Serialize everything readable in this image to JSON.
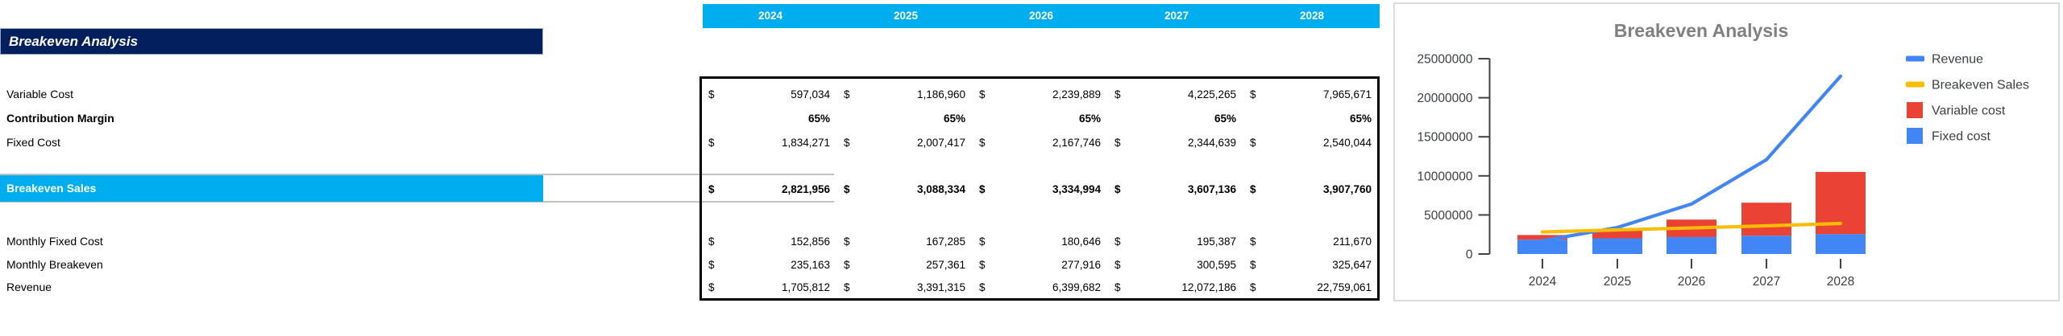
{
  "sheet": {
    "title": "Breakeven Analysis",
    "currency_symbol": "$",
    "columns": [
      "2024",
      "2025",
      "2026",
      "2027",
      "2028"
    ],
    "rows": [
      {
        "key": "variable-cost",
        "label": "Variable Cost",
        "dollar": true,
        "bold": false,
        "highlight": false,
        "values": [
          "597,034",
          "1,186,960",
          "2,239,889",
          "4,225,265",
          "7,965,671"
        ]
      },
      {
        "key": "contribution-margin",
        "label": "Contribution Margin",
        "dollar": false,
        "bold": true,
        "highlight": false,
        "values": [
          "65%",
          "65%",
          "65%",
          "65%",
          "65%"
        ]
      },
      {
        "key": "fixed-cost",
        "label": "Fixed Cost",
        "dollar": true,
        "bold": false,
        "highlight": false,
        "values": [
          "1,834,271",
          "2,007,417",
          "2,167,746",
          "2,344,639",
          "2,540,044"
        ]
      },
      {
        "key": "breakeven-sales",
        "label": "Breakeven Sales",
        "dollar": true,
        "bold": true,
        "highlight": true,
        "values": [
          "2,821,956",
          "3,088,334",
          "3,334,994",
          "3,607,136",
          "3,907,760"
        ]
      },
      {
        "key": "monthly-fixed-cost",
        "label": "Monthly Fixed Cost",
        "dollar": true,
        "bold": false,
        "highlight": false,
        "values": [
          "152,856",
          "167,285",
          "180,646",
          "195,387",
          "211,670"
        ]
      },
      {
        "key": "monthly-breakeven",
        "label": "Monthly Breakeven",
        "dollar": true,
        "bold": false,
        "highlight": false,
        "values": [
          "235,163",
          "257,361",
          "277,916",
          "300,595",
          "325,647"
        ]
      },
      {
        "key": "revenue",
        "label": "Revenue",
        "dollar": true,
        "bold": false,
        "highlight": false,
        "values": [
          "1,705,812",
          "3,391,315",
          "6,399,682",
          "12,072,186",
          "22,759,061"
        ]
      }
    ],
    "colors": {
      "title_bar": "#041F5E",
      "header_bar": "#00AEEF",
      "highlight_bar": "#00AEEF"
    }
  },
  "chart_data": {
    "type": "bar",
    "subtype": "stacked-bars-with-lines",
    "title": "Breakeven Analysis",
    "title_color": "#808080",
    "categories": [
      "2024",
      "2025",
      "2026",
      "2027",
      "2028"
    ],
    "series": [
      {
        "name": "Revenue",
        "type": "line",
        "color": "#4285F4",
        "values": [
          1705812,
          3391315,
          6399682,
          12072186,
          22759061
        ]
      },
      {
        "name": "Breakeven Sales",
        "type": "line",
        "color": "#FBBC04",
        "values": [
          2821956,
          3088334,
          3334994,
          3607136,
          3907760
        ]
      },
      {
        "name": "Variable cost",
        "type": "bar",
        "color": "#EA4335",
        "values": [
          597034,
          1186960,
          2239889,
          4225265,
          7965671
        ]
      },
      {
        "name": "Fixed cost",
        "type": "bar",
        "color": "#4285F4",
        "values": [
          1834271,
          2007417,
          2167746,
          2344639,
          2540044
        ]
      }
    ],
    "stacked": true,
    "xlabel": "",
    "ylabel": "",
    "ylim": [
      0,
      25000000
    ],
    "yticks": [
      0,
      5000000,
      10000000,
      15000000,
      20000000,
      25000000
    ],
    "grid": false,
    "legend_position": "right"
  }
}
